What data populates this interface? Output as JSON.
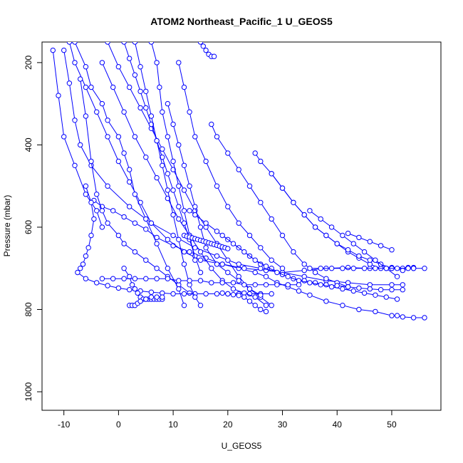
{
  "chart_data": {
    "type": "scatter",
    "title": "ATOM2 Northeast_Pacific_1 U_GEOS5",
    "xlabel": "U_GEOS5",
    "ylabel": "Pressure (mbar)",
    "xlim": [
      -14,
      59
    ],
    "ylim": [
      1045,
      150
    ],
    "y_reversed": true,
    "x_ticks": [
      -10,
      0,
      10,
      20,
      30,
      40,
      50
    ],
    "y_ticks": [
      200,
      400,
      600,
      800,
      1000
    ],
    "grid": false,
    "legend": "none",
    "style": "line-with-open-circles",
    "color": "#0000ff",
    "series": [
      {
        "x": [
          -4.5,
          -3,
          -1,
          1,
          3,
          5,
          7,
          10,
          13,
          16,
          19,
          22,
          25,
          27,
          29,
          31,
          33,
          35,
          38,
          41,
          44,
          47,
          50,
          51,
          52,
          54,
          56
        ],
        "y": [
          535,
          550,
          560,
          575,
          590,
          605,
          625,
          645,
          660,
          675,
          690,
          700,
          710,
          720,
          735,
          745,
          755,
          765,
          780,
          790,
          800,
          805,
          815,
          815,
          818,
          820,
          820
        ]
      },
      {
        "x": [
          -9,
          -8,
          -6,
          -4,
          -2,
          0,
          2,
          4,
          6,
          9,
          12,
          15,
          19,
          23,
          27,
          30,
          34,
          38,
          42,
          46,
          50,
          53,
          54
        ],
        "y": [
          150,
          200,
          260,
          320,
          380,
          440,
          490,
          540,
          590,
          630,
          660,
          680,
          690,
          700,
          705,
          710,
          705,
          700,
          698,
          700,
          698,
          698,
          698
        ]
      },
      {
        "x": [
          -10,
          -9,
          -8,
          -7,
          -5,
          -2,
          2,
          6,
          10,
          14,
          18,
          22,
          26,
          30,
          34,
          38,
          42,
          46,
          50,
          52
        ],
        "y": [
          170,
          250,
          340,
          400,
          450,
          500,
          550,
          590,
          620,
          650,
          670,
          690,
          700,
          710,
          720,
          730,
          735,
          740,
          740,
          740
        ]
      },
      {
        "x": [
          -12,
          -11,
          -10,
          -8,
          -6,
          -4,
          -3
        ],
        "y": [
          170,
          280,
          380,
          450,
          520,
          560,
          600
        ]
      },
      {
        "x": [
          -7,
          -6,
          -5,
          -4,
          -3,
          -2,
          0,
          1,
          3,
          5,
          7,
          9,
          11,
          13
        ],
        "y": [
          240,
          330,
          440,
          520,
          560,
          590,
          620,
          640,
          660,
          680,
          700,
          720,
          740,
          760
        ]
      },
      {
        "x": [
          -6,
          -5,
          -4.5,
          -5,
          -5.5,
          -6,
          -6.5,
          -7,
          -7.5,
          -6,
          -4,
          -2,
          0,
          2,
          4,
          6,
          8,
          10,
          12,
          14,
          16,
          18,
          20,
          22,
          24,
          26,
          28
        ],
        "y": [
          500,
          540,
          580,
          620,
          650,
          670,
          690,
          700,
          710,
          725,
          735,
          742,
          748,
          752,
          755,
          758,
          760,
          762,
          762,
          762,
          762,
          762,
          762,
          762,
          762,
          762,
          762
        ]
      },
      {
        "x": [
          -8,
          -6,
          -5,
          -3,
          -2,
          0,
          1,
          2,
          3,
          5,
          7,
          9,
          11,
          12
        ],
        "y": [
          150,
          210,
          260,
          300,
          340,
          380,
          420,
          460,
          520,
          580,
          640,
          700,
          750,
          790
        ]
      },
      {
        "x": [
          -3,
          -1,
          1,
          3,
          5,
          7,
          9,
          11,
          13,
          15,
          17,
          19,
          21,
          23,
          25,
          27
        ],
        "y": [
          200,
          260,
          320,
          380,
          430,
          480,
          530,
          580,
          620,
          660,
          700,
          730,
          750,
          760,
          770,
          790
        ]
      },
      {
        "x": [
          -2,
          0,
          2,
          4,
          6,
          8,
          10,
          12,
          14,
          16,
          18,
          20,
          22,
          24,
          26,
          28
        ],
        "y": [
          150,
          210,
          260,
          310,
          360,
          410,
          460,
          510,
          560,
          600,
          640,
          680,
          720,
          750,
          770,
          790
        ]
      },
      {
        "x": [
          1,
          2,
          3,
          4,
          5,
          6,
          7,
          8,
          9,
          10,
          11,
          12,
          13,
          14,
          15
        ],
        "y": [
          150,
          190,
          230,
          270,
          310,
          350,
          390,
          430,
          470,
          510,
          550,
          590,
          630,
          670,
          710
        ]
      },
      {
        "x": [
          3,
          4,
          5,
          6,
          7,
          8,
          9,
          10,
          11,
          12,
          13,
          14,
          15
        ],
        "y": [
          150,
          210,
          270,
          330,
          390,
          450,
          510,
          570,
          630,
          690,
          740,
          770,
          790
        ]
      },
      {
        "x": [
          1,
          2,
          2.5,
          3,
          3.5,
          4,
          4.5,
          5,
          5.5,
          6,
          6.5,
          7,
          7.5,
          8
        ],
        "y": [
          700,
          720,
          740,
          750,
          760,
          770,
          775,
          775,
          775,
          775,
          775,
          775,
          775,
          775
        ]
      },
      {
        "x": [
          2,
          2.5,
          3,
          3.5,
          4,
          5,
          6,
          7,
          8
        ],
        "y": [
          790,
          790,
          790,
          785,
          780,
          775,
          770,
          770,
          770
        ]
      },
      {
        "x": [
          6,
          7,
          7.5,
          8,
          9,
          10,
          11,
          12,
          13,
          14
        ],
        "y": [
          150,
          200,
          260,
          320,
          380,
          440,
          500,
          560,
          620,
          680
        ]
      },
      {
        "x": [
          9,
          10,
          11,
          12,
          13,
          14,
          15,
          16,
          18,
          20,
          22,
          24,
          26
        ],
        "y": [
          300,
          350,
          400,
          450,
          500,
          550,
          600,
          650,
          690,
          710,
          730,
          750,
          765
        ]
      },
      {
        "x": [
          15,
          15.5,
          16,
          16.5,
          17,
          17.5
        ],
        "y": [
          150,
          160,
          170,
          180,
          185,
          185
        ]
      },
      {
        "x": [
          11,
          12,
          13,
          14,
          16,
          18,
          20,
          22,
          24,
          26,
          28,
          30
        ],
        "y": [
          200,
          260,
          320,
          380,
          440,
          500,
          550,
          590,
          620,
          650,
          680,
          700
        ]
      },
      {
        "x": [
          17,
          18,
          20,
          22,
          24,
          26,
          28,
          30,
          32,
          34,
          36,
          38,
          40,
          42
        ],
        "y": [
          350,
          380,
          420,
          460,
          500,
          540,
          580,
          620,
          660,
          690,
          710,
          725,
          735,
          745
        ]
      },
      {
        "x": [
          25,
          26,
          28,
          30,
          32,
          34,
          36,
          38,
          40,
          42,
          44,
          46,
          48,
          50,
          52,
          54
        ],
        "y": [
          420,
          440,
          470,
          505,
          540,
          570,
          600,
          620,
          640,
          660,
          675,
          690,
          700,
          700,
          700,
          700
        ]
      },
      {
        "x": [
          28,
          30,
          32,
          34,
          36,
          38,
          40,
          42,
          44,
          46,
          48,
          50,
          52,
          54,
          56
        ],
        "y": [
          470,
          505,
          540,
          570,
          600,
          620,
          640,
          655,
          670,
          680,
          690,
          700,
          705,
          700,
          700
        ]
      },
      {
        "x": [
          13,
          14,
          16,
          18,
          20,
          22,
          24,
          26,
          28,
          30,
          32,
          34,
          36,
          38,
          40,
          42,
          44,
          46,
          48,
          50,
          52
        ],
        "y": [
          560,
          570,
          590,
          610,
          630,
          650,
          670,
          690,
          700,
          715,
          725,
          730,
          735,
          740,
          742,
          745,
          748,
          750,
          752,
          752,
          752
        ]
      },
      {
        "x": [
          19,
          21,
          23,
          25,
          27,
          29,
          31,
          33,
          35,
          37,
          39,
          41,
          43,
          45,
          47,
          49,
          51
        ],
        "y": [
          620,
          640,
          660,
          680,
          695,
          710,
          720,
          730,
          735,
          740,
          745,
          750,
          755,
          760,
          765,
          770,
          775
        ]
      },
      {
        "x": [
          35,
          37,
          39,
          41,
          43,
          45,
          47,
          49,
          51
        ],
        "y": [
          560,
          580,
          600,
          620,
          640,
          660,
          680,
          700,
          720
        ]
      },
      {
        "x": [
          42,
          44,
          46,
          48,
          50
        ],
        "y": [
          615,
          625,
          635,
          645,
          655
        ]
      },
      {
        "x": [
          12,
          12.5,
          13,
          13.5,
          14,
          14.5,
          15,
          15.5,
          16,
          16.5,
          17,
          17.5,
          18,
          18.5,
          19,
          19.5,
          20
        ],
        "y": [
          620,
          622,
          624,
          626,
          628,
          630,
          632,
          634,
          636,
          638,
          640,
          642,
          644,
          646,
          648,
          650,
          652
        ]
      },
      {
        "x": [
          19,
          20,
          21,
          22,
          23,
          24,
          25,
          26,
          27
        ],
        "y": [
          760,
          762,
          764,
          766,
          770,
          780,
          790,
          800,
          805
        ]
      },
      {
        "x": [
          -3,
          -1,
          1,
          3,
          5,
          7,
          9,
          11,
          13,
          15,
          17,
          19,
          21,
          23,
          25,
          27,
          29,
          31,
          33
        ],
        "y": [
          725,
          725,
          725,
          725,
          725,
          725,
          725,
          730,
          730,
          730,
          735,
          735,
          735,
          740,
          740,
          740,
          740,
          740,
          740
        ]
      },
      {
        "x": [
          35,
          37,
          39,
          41,
          43,
          45,
          47,
          49,
          51,
          53
        ],
        "y": [
          700,
          700,
          700,
          700,
          700,
          700,
          700,
          700,
          700,
          700
        ]
      }
    ]
  }
}
